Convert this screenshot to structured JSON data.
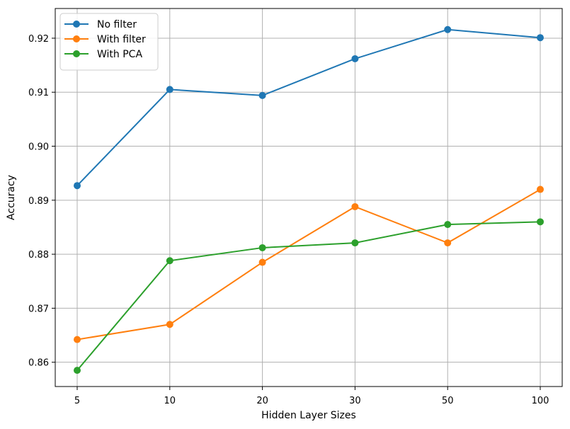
{
  "chart_data": {
    "type": "line",
    "title": "",
    "xlabel": "Hidden Layer Sizes",
    "ylabel": "Accuracy",
    "categories": [
      "5",
      "10",
      "20",
      "30",
      "50",
      "100"
    ],
    "ylim": [
      0.8555,
      0.9255
    ],
    "yticks": [
      "0.86",
      "0.87",
      "0.88",
      "0.89",
      "0.90",
      "0.91",
      "0.92"
    ],
    "yticks_values": [
      0.86,
      0.87,
      0.88,
      0.89,
      0.9,
      0.91,
      0.92
    ],
    "grid": true,
    "legend_position": "top-left",
    "series": [
      {
        "name": "No filter",
        "color": "#1f77b4",
        "values": [
          0.8927,
          0.9105,
          0.9094,
          0.9162,
          0.9216,
          0.9201
        ]
      },
      {
        "name": "With filter",
        "color": "#ff7f0e",
        "values": [
          0.8642,
          0.867,
          0.8785,
          0.8888,
          0.8821,
          0.892
        ]
      },
      {
        "name": "With PCA",
        "color": "#2ca02c",
        "values": [
          0.8585,
          0.8788,
          0.8812,
          0.8821,
          0.8855,
          0.886
        ]
      }
    ]
  }
}
